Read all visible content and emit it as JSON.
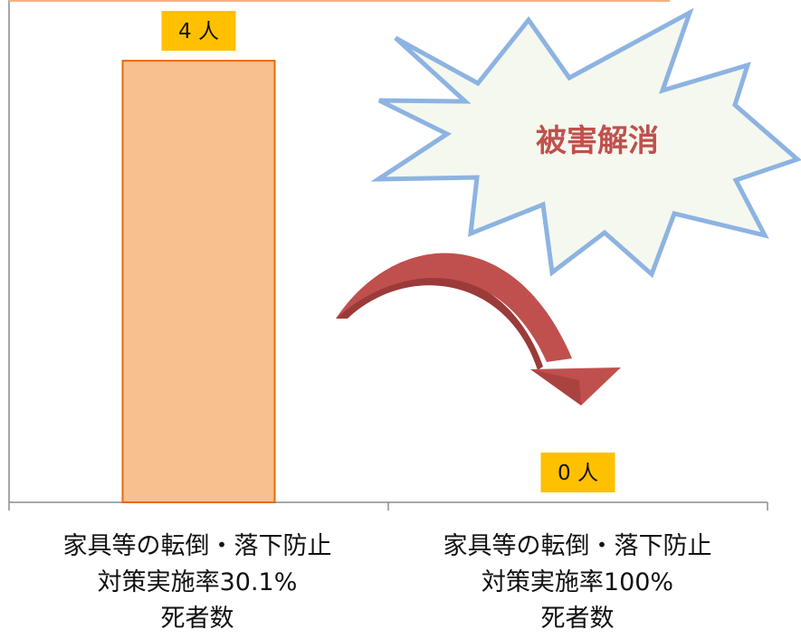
{
  "chart_data": {
    "type": "bar",
    "categories": [
      [
        "家具等の転倒・落下防止",
        "対策実施率30.1%",
        "死者数"
      ],
      [
        "家具等の転倒・落下防止",
        "対策実施率100%",
        "死者数"
      ]
    ],
    "values": [
      4,
      0
    ],
    "data_labels": [
      "4 人",
      "0 人"
    ],
    "ylim": [
      0,
      4.55
    ],
    "grid": false,
    "bar_color": "#f8bf8f",
    "bar_edge_color": "#e46c0a",
    "label_bg_color": "#ffc000"
  },
  "callout": {
    "text": "被害解消",
    "text_color": "#c0504d",
    "fill": "#f5f8ee",
    "stroke": "#8db3e2"
  },
  "arrow": {
    "color": "#c0504d",
    "shade": "#9b3b39"
  }
}
